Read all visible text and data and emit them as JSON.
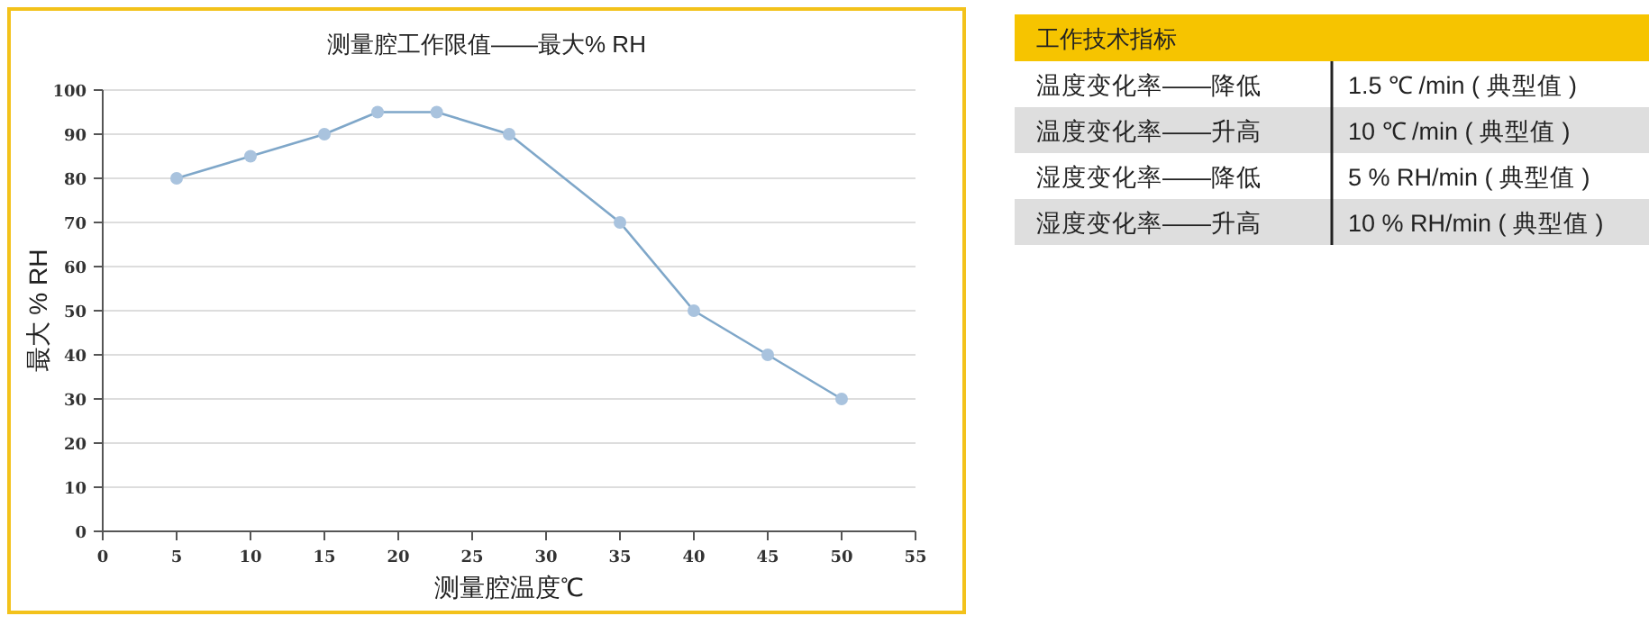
{
  "chart_data": [
    {
      "type": "line",
      "title": "测量腔工作限值——最大% RH",
      "xlabel": "测量腔温度℃",
      "ylabel": "最大 % RH",
      "x": [
        5,
        10,
        15,
        18.6,
        22.6,
        27.5,
        35,
        40,
        45,
        50
      ],
      "series": [
        {
          "color": "#7fa7c9",
          "values": [
            80,
            85,
            90,
            95,
            95,
            90,
            70,
            50,
            40,
            30
          ]
        }
      ],
      "xlim": [
        0,
        55
      ],
      "ylim": [
        0,
        100
      ],
      "xticks": [
        0,
        5,
        10,
        15,
        20,
        25,
        30,
        35,
        40,
        45,
        50,
        55
      ],
      "yticks": [
        0,
        10,
        20,
        30,
        40,
        50,
        60,
        70,
        80,
        90,
        100
      ],
      "grid": "y",
      "marker": "circle",
      "line_style": "solid"
    },
    {
      "type": "other",
      "title": "工作技术指标",
      "annotations": [
        "温度变化率——降低",
        "1.5 ℃ /min ( 典型值 )",
        "温度变化率——升高",
        "10 ℃ /min ( 典型值 )",
        "湿度变化率——降低",
        "5 % RH/min ( 典型值 )",
        "湿度变化率——升高",
        "10 % RH/min ( 典型值 )"
      ]
    }
  ]
}
